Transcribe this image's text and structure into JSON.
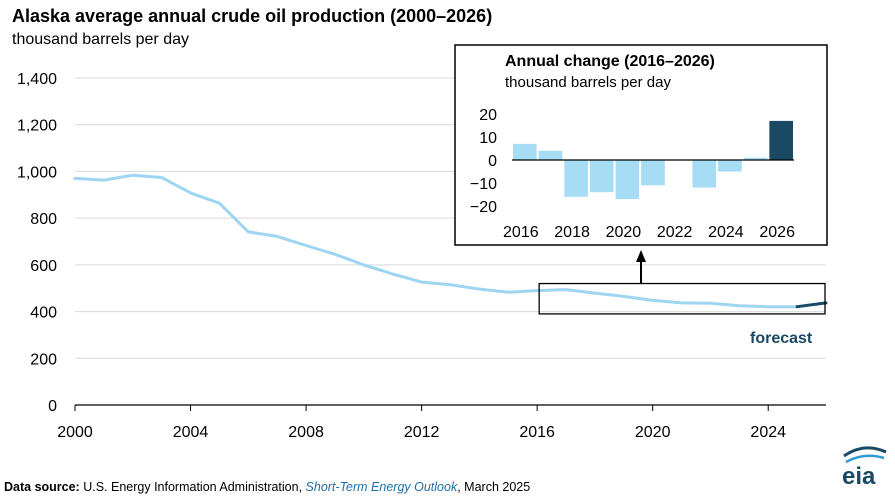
{
  "header": {
    "title": "Alaska average annual crude oil production (2000–2026)",
    "subtitle": "thousand barrels per day"
  },
  "forecast_label": "forecast",
  "source": {
    "label": "Data source:",
    "text_before": " U.S. Energy Information Administration, ",
    "publication": "Short-Term Energy Outlook",
    "text_after": ", March 2025"
  },
  "logo_text": "eia",
  "colors": {
    "history": "#9dd5f2",
    "forecast": "#1a4a63",
    "axis": "#000000",
    "grid": "#d9d9d9",
    "inset_bar": "#a7dcf5",
    "inset_forecast_bar": "#1a4a63"
  },
  "chart_data": [
    {
      "type": "line",
      "title": "Alaska average annual crude oil production (2000–2026)",
      "ylabel": "thousand barrels per day",
      "xlabel": "",
      "xlim": [
        2000,
        2026
      ],
      "ylim": [
        0,
        1400
      ],
      "xticks": [
        "2000",
        "2004",
        "2008",
        "2012",
        "2016",
        "2020",
        "2024"
      ],
      "yticks": [
        "0",
        "200",
        "400",
        "600",
        "800",
        "1,000",
        "1,200",
        "1,400"
      ],
      "grid": "horizontal",
      "series": [
        {
          "segment": "history",
          "x": [
            2000,
            2001,
            2002,
            2003,
            2004,
            2005,
            2006,
            2007,
            2008,
            2009,
            2010,
            2011,
            2012,
            2013,
            2014,
            2015,
            2016,
            2017,
            2018,
            2019,
            2020,
            2021,
            2022,
            2023,
            2024,
            2025
          ],
          "values": [
            970,
            963,
            984,
            974,
            908,
            864,
            741,
            722,
            683,
            645,
            600,
            561,
            526,
            515,
            496,
            483,
            490,
            494,
            479,
            465,
            448,
            437,
            436,
            425,
            421,
            421
          ]
        },
        {
          "segment": "forecast",
          "x": [
            2025,
            2026
          ],
          "values": [
            421,
            437
          ]
        }
      ],
      "highlight_range": [
        2016,
        2026
      ]
    },
    {
      "type": "bar",
      "title": "Annual change (2016–2026)",
      "ylabel": "thousand barrels per day",
      "categories": [
        2016,
        2017,
        2018,
        2019,
        2020,
        2021,
        2022,
        2023,
        2024,
        2025,
        2026
      ],
      "values": [
        7,
        4,
        -16,
        -14,
        -17,
        -11,
        0,
        -12,
        -5,
        1,
        17
      ],
      "forecast_from": 2026,
      "ylim": [
        -20,
        20
      ],
      "xticks": [
        "2016",
        "2018",
        "2020",
        "2022",
        "2024",
        "2026"
      ],
      "yticks": [
        "20",
        "10",
        "0",
        "−10",
        "−20"
      ]
    }
  ]
}
